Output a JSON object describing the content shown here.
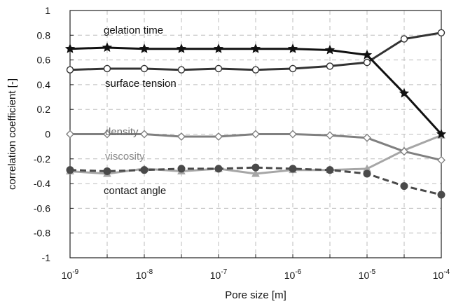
{
  "chart_data": {
    "type": "line",
    "xlabel": "Pore size [m]",
    "ylabel": "correlation coefficient [-]",
    "xscale": "log",
    "xlim": [
      1e-09,
      0.0001
    ],
    "ylim": [
      -1,
      1
    ],
    "grid": true,
    "x_tick_labels": [
      {
        "base": "10",
        "exp": "-9",
        "value": 1e-09
      },
      {
        "base": "10",
        "exp": "-8",
        "value": 1e-08
      },
      {
        "base": "10",
        "exp": "-7",
        "value": 1e-07
      },
      {
        "base": "10",
        "exp": "-6",
        "value": 1e-06
      },
      {
        "base": "10",
        "exp": "-5",
        "value": 1e-05
      },
      {
        "base": "10",
        "exp": "-4",
        "value": 0.0001
      }
    ],
    "y_tick_labels": [
      "-1",
      "-0.8",
      "-0.6",
      "-0.4",
      "-0.2",
      "0",
      "0.2",
      "0.4",
      "0.6",
      "0.8",
      "1"
    ],
    "y_tick_values": [
      -1,
      -0.8,
      -0.6,
      -0.4,
      -0.2,
      0,
      0.2,
      0.4,
      0.6,
      0.8,
      1
    ],
    "x": [
      1e-09,
      3.16e-09,
      1e-08,
      3.16e-08,
      1e-07,
      3.16e-07,
      1e-06,
      3.16e-06,
      1e-05,
      3.16e-05,
      0.0001
    ],
    "series": [
      {
        "name": "gelation time",
        "color": "#111111",
        "marker": "star",
        "dash": "solid",
        "values": [
          0.69,
          0.7,
          0.69,
          0.69,
          0.69,
          0.69,
          0.69,
          0.68,
          0.64,
          0.33,
          0.0
        ]
      },
      {
        "name": "surface tension",
        "color": "#333333",
        "marker": "circle-open",
        "dash": "solid",
        "values": [
          0.52,
          0.53,
          0.53,
          0.52,
          0.53,
          0.52,
          0.53,
          0.55,
          0.58,
          0.77,
          0.82
        ]
      },
      {
        "name": "density",
        "color": "#808080",
        "marker": "diamond-open",
        "dash": "solid",
        "values": [
          0.0,
          0.0,
          0.0,
          -0.02,
          -0.02,
          0.0,
          0.0,
          -0.01,
          -0.03,
          -0.14,
          -0.21
        ]
      },
      {
        "name": "viscosity",
        "color": "#a6a6a6",
        "marker": "triangle",
        "dash": "solid",
        "values": [
          -0.3,
          -0.32,
          -0.28,
          -0.3,
          -0.28,
          -0.32,
          -0.29,
          -0.29,
          -0.28,
          -0.13,
          -0.01
        ]
      },
      {
        "name": "contact angle",
        "color": "#4a4a4a",
        "marker": "circle-filled",
        "dash": "dashed",
        "values": [
          -0.29,
          -0.3,
          -0.29,
          -0.28,
          -0.28,
          -0.27,
          -0.28,
          -0.29,
          -0.32,
          -0.42,
          -0.49
        ]
      }
    ],
    "annotations": [
      {
        "text": "gelation time",
        "series": "gelation time",
        "color": "#111111"
      },
      {
        "text": "surface tension",
        "series": "surface tension",
        "color": "#111111"
      },
      {
        "text": "density",
        "series": "density",
        "color": "#6e6e6e"
      },
      {
        "text": "viscosity",
        "series": "viscosity",
        "color": "#8c8c8c"
      },
      {
        "text": "contact angle",
        "series": "contact angle",
        "color": "#222222"
      }
    ]
  }
}
